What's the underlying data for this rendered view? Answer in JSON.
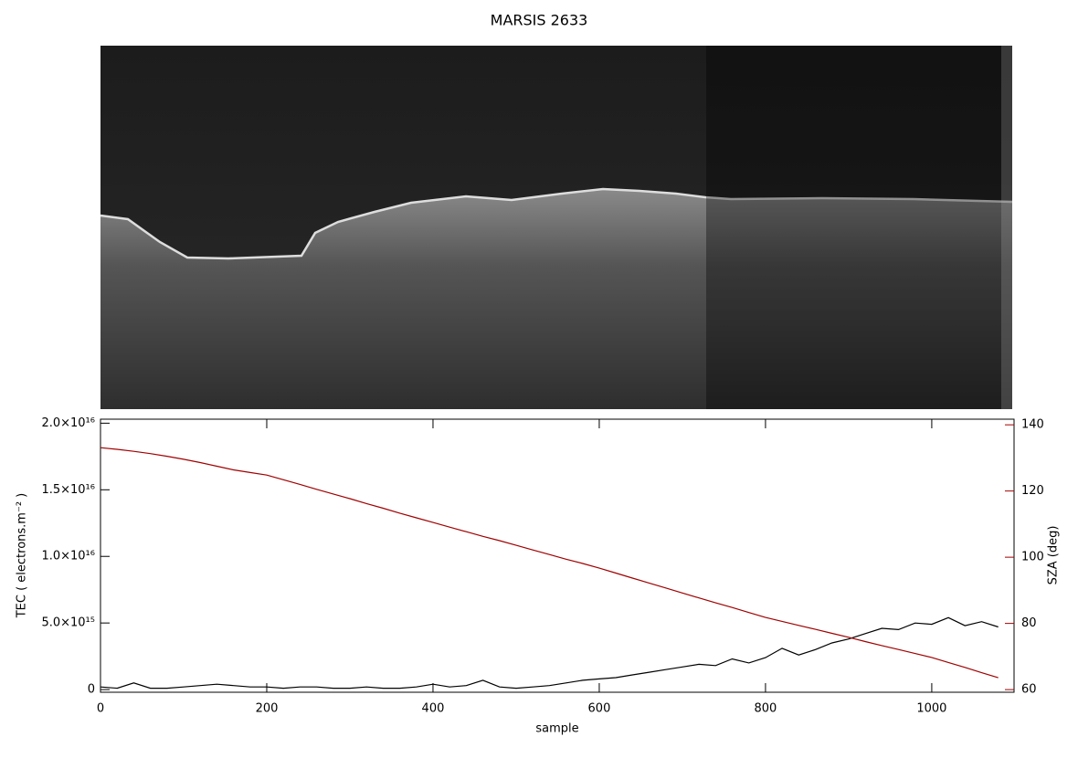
{
  "chart_data": {
    "type": "line",
    "title": "MARSIS 2633",
    "x_label": "sample",
    "y_label": "TEC ( electrons.m⁻² )",
    "y2_label": "SZA (deg)",
    "xlim": [
      0,
      1099
    ],
    "xticks": [
      0,
      200,
      400,
      600,
      800,
      1000
    ],
    "ylim": [
      -200000000000000.0,
      2.03e+16
    ],
    "yticks": [
      0,
      {
        "value": 5000000000000000.0,
        "label": "5.0×10¹⁵"
      },
      {
        "value": 1e+16,
        "label": "1.0×10¹⁶"
      },
      {
        "value": 1.5e+16,
        "label": "1.5×10¹⁶"
      },
      {
        "value": 2e+16,
        "label": "2.0×10¹⁶"
      }
    ],
    "y2lim": [
      59.2,
      141.7
    ],
    "y2ticks": [
      60,
      80,
      100,
      120,
      140
    ],
    "y2_color": "#a00000",
    "x": [
      0,
      20,
      40,
      60,
      80,
      100,
      120,
      140,
      160,
      180,
      200,
      220,
      240,
      260,
      280,
      300,
      320,
      340,
      360,
      380,
      400,
      420,
      440,
      460,
      480,
      500,
      520,
      540,
      560,
      580,
      600,
      620,
      640,
      660,
      680,
      700,
      720,
      740,
      760,
      780,
      800,
      820,
      840,
      860,
      880,
      900,
      920,
      940,
      960,
      980,
      1000,
      1020,
      1040,
      1060,
      1080
    ],
    "series": [
      {
        "color": "#000000",
        "values": [
          200000000000000.0,
          100000000000000.0,
          500000000000000.0,
          100000000000000.0,
          100000000000000.0,
          200000000000000.0,
          300000000000000.0,
          400000000000000.0,
          300000000000000.0,
          200000000000000.0,
          200000000000000.0,
          100000000000000.0,
          200000000000000.0,
          200000000000000.0,
          100000000000000.0,
          100000000000000.0,
          200000000000000.0,
          100000000000000.0,
          100000000000000.0,
          200000000000000.0,
          400000000000000.0,
          200000000000000.0,
          300000000000000.0,
          700000000000000.0,
          200000000000000.0,
          100000000000000.0,
          200000000000000.0,
          300000000000000.0,
          500000000000000.0,
          700000000000000.0,
          800000000000000.0,
          900000000000000.0,
          1100000000000000.0,
          1300000000000000.0,
          1500000000000000.0,
          1700000000000000.0,
          1900000000000000.0,
          1800000000000000.0,
          2300000000000000.0,
          2000000000000000.0,
          2400000000000000.0,
          3100000000000000.0,
          2600000000000000.0,
          3000000000000000.0,
          3500000000000000.0,
          3800000000000000.0,
          4200000000000000.0,
          4600000000000000.0,
          4500000000000000.0,
          5000000000000000.0,
          4900000000000000.0,
          5400000000000000.0,
          4800000000000000.0,
          5100000000000000.0,
          4700000000000000.0
        ]
      },
      {
        "color": "#a00000",
        "axis": "y2",
        "values": [
          133.1,
          132.6,
          132.0,
          131.3,
          130.5,
          129.6,
          128.6,
          127.5,
          126.4,
          125.6,
          124.8,
          123.4,
          122.0,
          120.5,
          119.1,
          117.7,
          116.2,
          114.8,
          113.3,
          111.9,
          110.5,
          109.1,
          107.7,
          106.3,
          105.0,
          103.6,
          102.2,
          100.8,
          99.4,
          98.1,
          96.7,
          95.2,
          93.7,
          92.2,
          90.7,
          89.2,
          87.7,
          86.2,
          84.8,
          83.3,
          81.8,
          80.6,
          79.4,
          78.2,
          77.0,
          75.8,
          74.5,
          73.3,
          72.1,
          70.9,
          69.7,
          68.2,
          66.7,
          65.1,
          63.6
        ]
      }
    ]
  }
}
